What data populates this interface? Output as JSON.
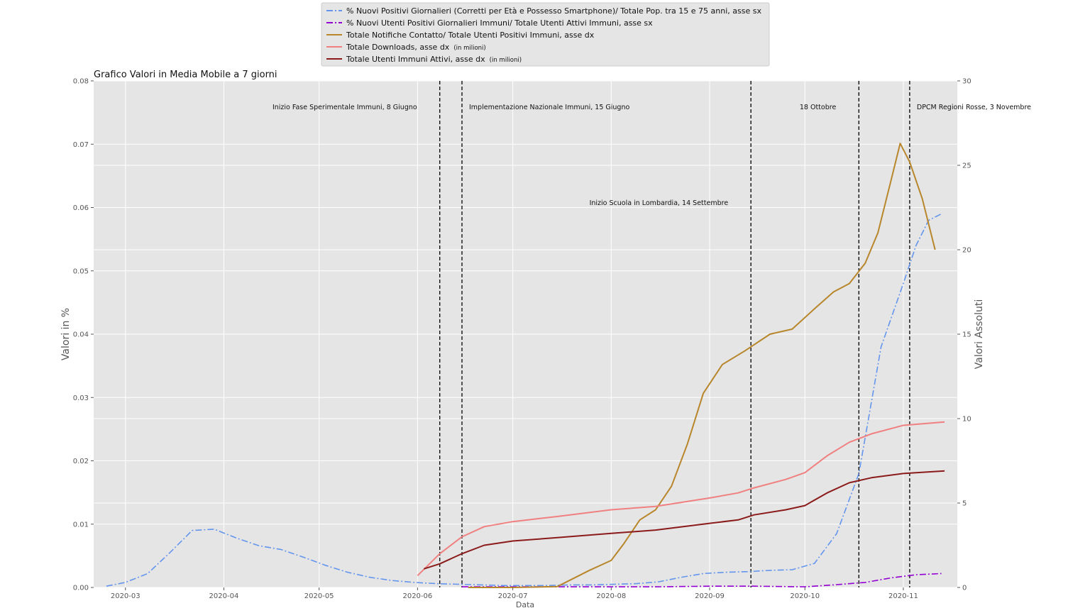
{
  "chart_data": {
    "type": "line",
    "title": "Grafico Valori in Media Mobile a 7 giorni",
    "xlabel": "Data",
    "ylabel_left": "Valori in %",
    "ylabel_right": "Valori Assoluti",
    "xlim": [
      "2020-02-20",
      "2020-11-18"
    ],
    "ylim_left": [
      0,
      0.08
    ],
    "ylim_right": [
      0,
      30
    ],
    "grid": true,
    "legend_position": "top-center",
    "x_ticks": [
      "2020-03-01",
      "2020-04-01",
      "2020-05-01",
      "2020-06-01",
      "2020-07-01",
      "2020-08-01",
      "2020-09-01",
      "2020-10-01",
      "2020-11-01"
    ],
    "x_tick_labels": [
      "2020-03",
      "2020-04",
      "2020-05",
      "2020-06",
      "2020-07",
      "2020-08",
      "2020-09",
      "2020-10",
      "2020-11"
    ],
    "y_left_ticks": [
      0,
      0.01,
      0.02,
      0.03,
      0.04,
      0.05,
      0.06,
      0.07,
      0.08
    ],
    "y_left_tick_labels": [
      "0.00",
      "0.01",
      "0.02",
      "0.03",
      "0.04",
      "0.05",
      "0.06",
      "0.07",
      "0.08"
    ],
    "y_right_ticks": [
      0,
      5,
      10,
      15,
      20,
      25,
      30
    ],
    "y_right_tick_labels": [
      "0",
      "5",
      "10",
      "15",
      "20",
      "25",
      "30"
    ],
    "series": [
      {
        "name": "% Nuovi Positivi Giornalieri (Corretti per Età e Possesso Smartphone)/ Totale Pop. tra 15 e 75 anni, asse sx",
        "axis": "left",
        "color": "#6495ed",
        "style": "dashdot",
        "x": [
          "2020-02-24",
          "2020-03-01",
          "2020-03-08",
          "2020-03-15",
          "2020-03-22",
          "2020-03-29",
          "2020-04-05",
          "2020-04-12",
          "2020-04-19",
          "2020-04-26",
          "2020-05-03",
          "2020-05-10",
          "2020-05-17",
          "2020-05-24",
          "2020-05-31",
          "2020-06-07",
          "2020-06-14",
          "2020-06-21",
          "2020-06-28",
          "2020-07-05",
          "2020-07-12",
          "2020-07-19",
          "2020-07-26",
          "2020-08-02",
          "2020-08-09",
          "2020-08-16",
          "2020-08-23",
          "2020-08-30",
          "2020-09-06",
          "2020-09-13",
          "2020-09-20",
          "2020-09-27",
          "2020-10-04",
          "2020-10-11",
          "2020-10-18",
          "2020-10-25",
          "2020-11-01",
          "2020-11-05",
          "2020-11-09",
          "2020-11-13"
        ],
        "values": [
          0.0002,
          0.0008,
          0.0022,
          0.0055,
          0.009,
          0.0092,
          0.0078,
          0.0066,
          0.006,
          0.0048,
          0.0035,
          0.0024,
          0.0016,
          0.0011,
          0.0008,
          0.0006,
          0.0005,
          0.0004,
          0.0003,
          0.0003,
          0.0003,
          0.0004,
          0.0004,
          0.0005,
          0.0006,
          0.0009,
          0.0016,
          0.0022,
          0.0024,
          0.0025,
          0.0027,
          0.0028,
          0.0038,
          0.0085,
          0.018,
          0.038,
          0.048,
          0.054,
          0.058,
          0.059
        ]
      },
      {
        "name": "% Nuovi Utenti Positivi Giornalieri Immuni/ Totale Utenti Attivi Immuni, asse sx",
        "axis": "left",
        "color": "#9400d3",
        "style": "dashdot",
        "x": [
          "2020-06-15",
          "2020-07-01",
          "2020-07-15",
          "2020-08-01",
          "2020-08-15",
          "2020-09-01",
          "2020-09-15",
          "2020-10-01",
          "2020-10-10",
          "2020-10-20",
          "2020-10-28",
          "2020-11-05",
          "2020-11-13"
        ],
        "values": [
          0.0001,
          0.0001,
          0.0001,
          0.0001,
          0.0001,
          0.0002,
          0.0002,
          0.0001,
          0.0004,
          0.0008,
          0.0015,
          0.002,
          0.0022
        ]
      },
      {
        "name": "Totale Notifiche Contatto/ Totale Utenti Positivi Immuni, asse dx",
        "axis": "right",
        "color": "#b8862b",
        "style": "solid",
        "x": [
          "2020-06-17",
          "2020-07-01",
          "2020-07-15",
          "2020-07-25",
          "2020-08-01",
          "2020-08-05",
          "2020-08-10",
          "2020-08-15",
          "2020-08-20",
          "2020-08-25",
          "2020-08-30",
          "2020-09-05",
          "2020-09-12",
          "2020-09-20",
          "2020-09-27",
          "2020-10-04",
          "2020-10-10",
          "2020-10-15",
          "2020-10-20",
          "2020-10-24",
          "2020-10-28",
          "2020-10-31",
          "2020-11-03",
          "2020-11-07",
          "2020-11-11"
        ],
        "values": [
          0,
          0,
          0.05,
          1.0,
          1.6,
          2.6,
          4.0,
          4.6,
          6.0,
          8.5,
          11.5,
          13.2,
          14.0,
          15.0,
          15.3,
          16.5,
          17.5,
          18.0,
          19.2,
          21.0,
          24.0,
          26.3,
          25.2,
          23.0,
          20.0
        ]
      },
      {
        "name": "Totale Downloads, asse dx",
        "note": "(in milioni)",
        "axis": "right",
        "color": "#f08080",
        "style": "solid",
        "x": [
          "2020-06-01",
          "2020-06-08",
          "2020-06-15",
          "2020-06-22",
          "2020-07-01",
          "2020-07-15",
          "2020-08-01",
          "2020-08-15",
          "2020-09-01",
          "2020-09-10",
          "2020-09-15",
          "2020-09-25",
          "2020-10-01",
          "2020-10-08",
          "2020-10-15",
          "2020-10-22",
          "2020-11-01",
          "2020-11-14"
        ],
        "values": [
          0.7,
          2.0,
          3.0,
          3.6,
          3.9,
          4.2,
          4.6,
          4.8,
          5.3,
          5.6,
          5.9,
          6.4,
          6.8,
          7.8,
          8.6,
          9.1,
          9.6,
          9.8
        ]
      },
      {
        "name": "Totale Utenti Immuni Attivi, asse dx",
        "note": "(in milioni)",
        "axis": "right",
        "color": "#8b1a1a",
        "style": "solid",
        "x": [
          "2020-06-03",
          "2020-06-08",
          "2020-06-15",
          "2020-06-22",
          "2020-07-01",
          "2020-07-15",
          "2020-08-01",
          "2020-08-15",
          "2020-09-01",
          "2020-09-10",
          "2020-09-15",
          "2020-09-25",
          "2020-10-01",
          "2020-10-08",
          "2020-10-15",
          "2020-10-22",
          "2020-11-01",
          "2020-11-14"
        ],
        "values": [
          1.1,
          1.4,
          2.0,
          2.5,
          2.75,
          2.95,
          3.2,
          3.4,
          3.8,
          4.0,
          4.3,
          4.6,
          4.85,
          5.6,
          6.2,
          6.5,
          6.75,
          6.9
        ]
      }
    ],
    "vlines": [
      {
        "x": "2020-06-08",
        "label": "Inizio Fase Sperimentale Immuni, 8 Giugno",
        "label_y": 0.0755,
        "anchor": "end"
      },
      {
        "x": "2020-06-15",
        "label": "Implementazione Nazionale Immuni, 15 Giugno",
        "label_y": 0.0755,
        "anchor": "start"
      },
      {
        "x": "2020-09-14",
        "label": "Inizio Scuola in Lombardia, 14 Settembre",
        "label_y": 0.0604,
        "anchor": "end"
      },
      {
        "x": "2020-10-18",
        "label": "18 Ottobre",
        "label_y": 0.0755,
        "anchor": "end"
      },
      {
        "x": "2020-11-03",
        "label": "DPCM Regioni Rosse, 3 Novembre",
        "label_y": 0.0755,
        "anchor": "start"
      }
    ]
  }
}
